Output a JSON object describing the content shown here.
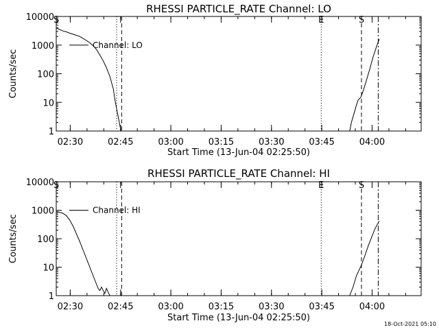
{
  "footer_timestamp": "18-Oct-2021 05:10",
  "chart_data": [
    {
      "type": "line",
      "title": "RHESSI PARTICLE_RATE Channel: LO",
      "xlabel": "Start Time (13-Jun-04 02:25:50)",
      "ylabel": "Counts/sec",
      "yscale": "log",
      "ylim": [
        1,
        10000
      ],
      "xlim_minutes": [
        0,
        108.8
      ],
      "x_ticks": [
        {
          "t": 4.17,
          "label": "02:30"
        },
        {
          "t": 19.17,
          "label": "02:45"
        },
        {
          "t": 34.17,
          "label": "03:00"
        },
        {
          "t": 49.17,
          "label": "03:15"
        },
        {
          "t": 64.17,
          "label": "03:30"
        },
        {
          "t": 79.17,
          "label": "03:45"
        },
        {
          "t": 94.17,
          "label": "04:00"
        }
      ],
      "y_ticks": [
        {
          "v": 1,
          "label": "1"
        },
        {
          "v": 10,
          "label": "10"
        },
        {
          "v": 100,
          "label": "100"
        },
        {
          "v": 1000,
          "label": "1000"
        },
        {
          "v": 10000,
          "label": "10000"
        }
      ],
      "legend": "Channel: LO",
      "legend_position": "top-left",
      "markers": [
        {
          "t": 18.0,
          "style": "dotted",
          "label": ""
        },
        {
          "t": 19.5,
          "style": "dashed",
          "label": ""
        },
        {
          "t": 79.0,
          "style": "dotted",
          "label": "E"
        },
        {
          "t": 91.0,
          "style": "dashed",
          "label": "S"
        },
        {
          "t": 96.0,
          "style": "dashdot",
          "label": ""
        },
        {
          "t": 0.0,
          "style": "none",
          "label": "S"
        }
      ],
      "series": [
        {
          "name": "Channel: LO",
          "segments": [
            [
              [
                0,
                4000
              ],
              [
                1,
                3500
              ],
              [
                2,
                3100
              ],
              [
                3,
                2900
              ],
              [
                4,
                2600
              ],
              [
                5,
                2400
              ],
              [
                6,
                2200
              ],
              [
                7,
                2000
              ],
              [
                8,
                1700
              ],
              [
                9,
                1450
              ],
              [
                10,
                1200
              ],
              [
                11,
                950
              ],
              [
                12,
                700
              ],
              [
                13,
                450
              ],
              [
                14,
                280
              ],
              [
                15,
                160
              ],
              [
                16,
                80
              ],
              [
                17,
                30
              ],
              [
                17.5,
                12
              ],
              [
                18,
                6
              ],
              [
                18.5,
                3
              ],
              [
                19,
                1.5
              ],
              [
                19.3,
                1
              ]
            ],
            [
              [
                87.5,
                1
              ],
              [
                88,
                2
              ],
              [
                89,
                5
              ],
              [
                89.5,
                8
              ],
              [
                90,
                12
              ],
              [
                90.8,
                15
              ],
              [
                91.5,
                25
              ],
              [
                92.5,
                60
              ],
              [
                93.5,
                150
              ],
              [
                94.5,
                400
              ],
              [
                95.5,
                900
              ],
              [
                96.3,
                1600
              ]
            ]
          ]
        }
      ]
    },
    {
      "type": "line",
      "title": "RHESSI PARTICLE_RATE Channel: HI",
      "xlabel": "Start Time (13-Jun-04 02:25:50)",
      "ylabel": "Counts/sec",
      "yscale": "log",
      "ylim": [
        1,
        10000
      ],
      "xlim_minutes": [
        0,
        108.8
      ],
      "x_ticks": [
        {
          "t": 4.17,
          "label": "02:30"
        },
        {
          "t": 19.17,
          "label": "02:45"
        },
        {
          "t": 34.17,
          "label": "03:00"
        },
        {
          "t": 49.17,
          "label": "03:15"
        },
        {
          "t": 64.17,
          "label": "03:30"
        },
        {
          "t": 79.17,
          "label": "03:45"
        },
        {
          "t": 94.17,
          "label": "04:00"
        }
      ],
      "y_ticks": [
        {
          "v": 1,
          "label": "1"
        },
        {
          "v": 10,
          "label": "10"
        },
        {
          "v": 100,
          "label": "100"
        },
        {
          "v": 1000,
          "label": "1000"
        },
        {
          "v": 10000,
          "label": "10000"
        }
      ],
      "legend": "Channel: HI",
      "legend_position": "top-left",
      "markers": [
        {
          "t": 18.0,
          "style": "dotted",
          "label": ""
        },
        {
          "t": 19.5,
          "style": "dashed",
          "label": ""
        },
        {
          "t": 79.0,
          "style": "dotted",
          "label": "E"
        },
        {
          "t": 91.0,
          "style": "dashed",
          "label": "S"
        },
        {
          "t": 96.0,
          "style": "dashdot",
          "label": ""
        },
        {
          "t": 0.0,
          "style": "none",
          "label": "S"
        }
      ],
      "series": [
        {
          "name": "Channel: HI",
          "segments": [
            [
              [
                0,
                900
              ],
              [
                1,
                850
              ],
              [
                2,
                780
              ],
              [
                3,
                650
              ],
              [
                4,
                450
              ],
              [
                5,
                280
              ],
              [
                6,
                150
              ],
              [
                7,
                80
              ],
              [
                8,
                40
              ],
              [
                9,
                20
              ],
              [
                10,
                10
              ],
              [
                11,
                5
              ],
              [
                12,
                2.5
              ],
              [
                12.5,
                1.8
              ],
              [
                13,
                1.5
              ],
              [
                13.5,
                2
              ],
              [
                14,
                1.5
              ],
              [
                14.5,
                1.2
              ],
              [
                15,
                1.8
              ],
              [
                15.5,
                1.3
              ],
              [
                16,
                1
              ]
            ],
            [
              [
                87.5,
                1
              ],
              [
                88.5,
                2
              ],
              [
                89.5,
                5
              ],
              [
                91,
                12
              ],
              [
                92,
                25
              ],
              [
                93,
                55
              ],
              [
                94,
                110
              ],
              [
                95,
                220
              ],
              [
                96.3,
                420
              ]
            ]
          ]
        }
      ]
    }
  ]
}
